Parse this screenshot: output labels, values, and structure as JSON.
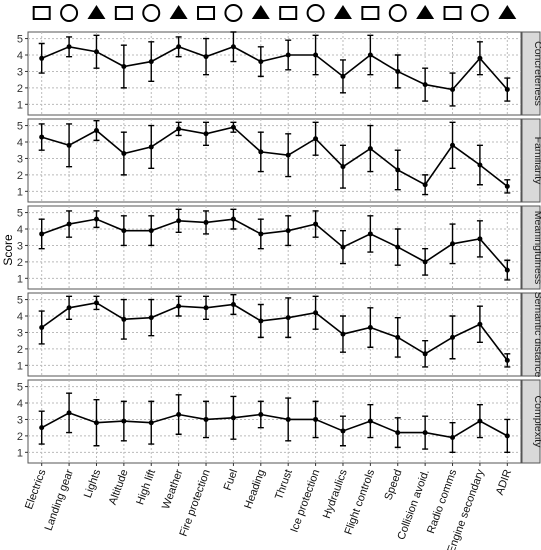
{
  "chart_data": {
    "type": "line",
    "ylabel": "Score",
    "categories": [
      "Electrics",
      "Landing gear",
      "Lights",
      "Altitude",
      "High lift",
      "Weather",
      "Fire protection",
      "Fuel",
      "Heading",
      "Thrust",
      "Ice protection",
      "Hydraulics",
      "Flight controls",
      "Speed",
      "Collision avoid.",
      "Radio comms",
      "Engine secondary",
      "ADIR"
    ],
    "ylim": [
      0.35,
      5.4
    ],
    "yticks": [
      1,
      2,
      3,
      4,
      5
    ],
    "grid": true,
    "color": "#000000",
    "panels": [
      {
        "title": "Concreteness",
        "values": [
          3.8,
          4.5,
          4.2,
          3.3,
          3.6,
          4.5,
          3.9,
          4.5,
          3.6,
          4.0,
          4.0,
          2.7,
          4.0,
          3.0,
          2.2,
          1.9,
          3.8,
          1.9
        ],
        "errors": [
          0.9,
          0.6,
          1.0,
          1.3,
          1.2,
          0.6,
          1.1,
          0.9,
          0.9,
          0.9,
          1.2,
          1.0,
          1.2,
          1.0,
          1.0,
          1.0,
          1.0,
          0.7
        ]
      },
      {
        "title": "Familiarity",
        "values": [
          4.3,
          3.8,
          4.7,
          3.3,
          3.7,
          4.8,
          4.5,
          4.9,
          3.4,
          3.2,
          4.2,
          2.5,
          3.6,
          2.3,
          1.4,
          3.8,
          2.6,
          1.3
        ],
        "errors": [
          0.8,
          1.3,
          0.6,
          1.3,
          1.3,
          0.4,
          0.7,
          0.3,
          1.2,
          1.3,
          1.0,
          1.3,
          1.4,
          1.2,
          0.6,
          1.4,
          1.2,
          0.4
        ]
      },
      {
        "title": "Meaningfulness",
        "values": [
          3.7,
          4.3,
          4.6,
          3.9,
          3.9,
          4.5,
          4.4,
          4.6,
          3.7,
          3.9,
          4.3,
          2.9,
          3.7,
          2.9,
          2.0,
          3.1,
          3.4,
          1.5
        ],
        "errors": [
          0.9,
          0.8,
          0.5,
          0.9,
          0.9,
          0.7,
          0.7,
          0.6,
          0.9,
          0.9,
          0.8,
          1.0,
          1.1,
          1.1,
          0.8,
          1.2,
          1.1,
          0.6
        ]
      },
      {
        "title": "Semantic distance",
        "values": [
          3.3,
          4.5,
          4.8,
          3.8,
          3.9,
          4.6,
          4.5,
          4.7,
          3.7,
          3.9,
          4.2,
          2.9,
          3.3,
          2.7,
          1.7,
          2.7,
          3.5,
          1.3
        ],
        "errors": [
          1.0,
          0.7,
          0.4,
          1.2,
          1.1,
          0.6,
          0.7,
          0.6,
          1.0,
          1.2,
          1.0,
          1.1,
          1.2,
          1.2,
          0.8,
          1.3,
          1.1,
          0.4
        ]
      },
      {
        "title": "Complexity",
        "values": [
          2.5,
          3.4,
          2.8,
          2.9,
          2.8,
          3.3,
          3.0,
          3.1,
          3.3,
          3.0,
          3.0,
          2.3,
          2.9,
          2.2,
          2.2,
          1.9,
          2.9,
          2.0
        ],
        "errors": [
          1.0,
          1.2,
          1.4,
          1.2,
          1.3,
          1.2,
          1.1,
          1.3,
          0.8,
          1.3,
          1.1,
          0.9,
          1.0,
          0.9,
          1.0,
          0.9,
          1.0,
          1.0
        ]
      }
    ]
  }
}
